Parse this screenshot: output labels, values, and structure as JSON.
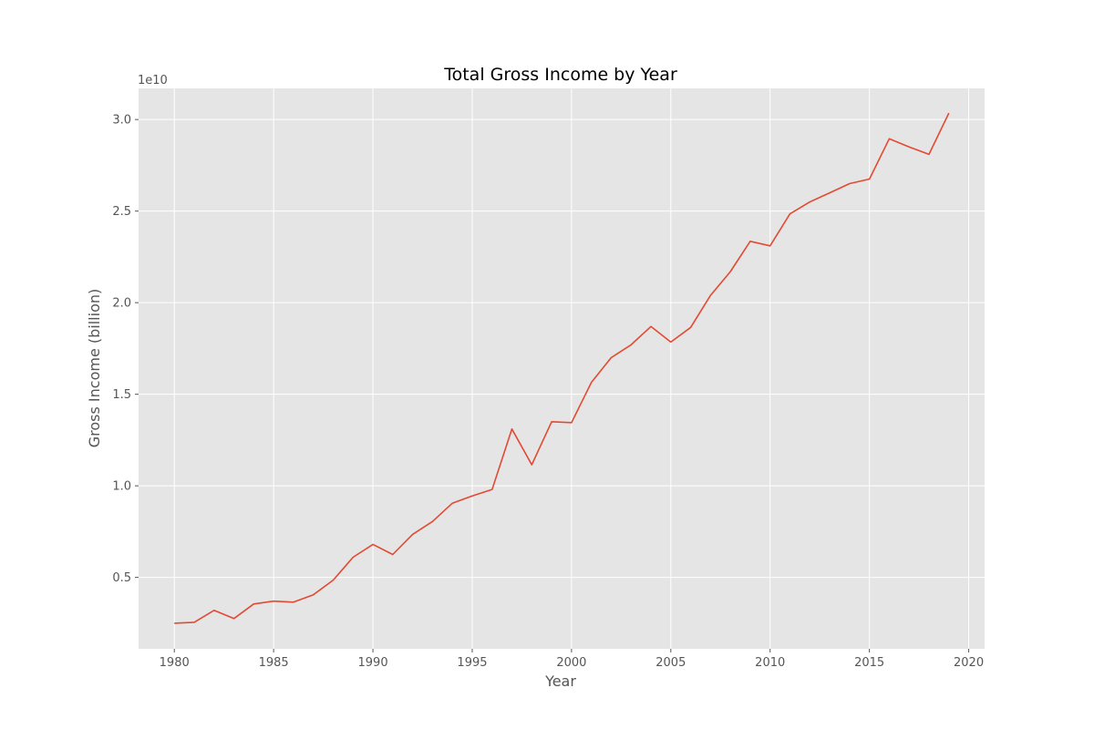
{
  "chart_data": {
    "type": "line",
    "title": "Total Gross Income by Year",
    "xlabel": "Year",
    "ylabel": "Gross Income (billion)",
    "y_offset_label": "1e10",
    "xlim": [
      1978.2,
      2020.8
    ],
    "ylim": [
      0.11,
      3.17
    ],
    "x_ticks": [
      1980,
      1985,
      1990,
      1995,
      2000,
      2005,
      2010,
      2015,
      2020
    ],
    "x_tick_labels": [
      "1980",
      "1985",
      "1990",
      "1995",
      "2000",
      "2005",
      "2010",
      "2015",
      "2020"
    ],
    "y_ticks": [
      0.5,
      1.0,
      1.5,
      2.0,
      2.5,
      3.0
    ],
    "y_tick_labels": [
      "0.5",
      "1.0",
      "1.5",
      "2.0",
      "2.5",
      "3.0"
    ],
    "grid": true,
    "style": "ggplot",
    "series": [
      {
        "color": "#E24A33",
        "x": [
          1980,
          1981,
          1982,
          1983,
          1984,
          1985,
          1986,
          1987,
          1988,
          1989,
          1990,
          1991,
          1992,
          1993,
          1994,
          1995,
          1996,
          1997,
          1998,
          1999,
          2000,
          2001,
          2002,
          2003,
          2004,
          2005,
          2006,
          2007,
          2008,
          2009,
          2010,
          2011,
          2012,
          2013,
          2014,
          2015,
          2016,
          2017,
          2018,
          2019
        ],
        "y": [
          0.25,
          0.255,
          0.32,
          0.275,
          0.355,
          0.37,
          0.365,
          0.405,
          0.485,
          0.61,
          0.68,
          0.625,
          0.735,
          0.805,
          0.905,
          0.945,
          0.98,
          1.31,
          1.115,
          1.35,
          1.345,
          1.565,
          1.7,
          1.77,
          1.87,
          1.785,
          1.865,
          2.04,
          2.17,
          2.335,
          2.31,
          2.485,
          2.55,
          2.6,
          2.65,
          2.675,
          2.895,
          2.85,
          2.81,
          3.035
        ]
      }
    ]
  }
}
